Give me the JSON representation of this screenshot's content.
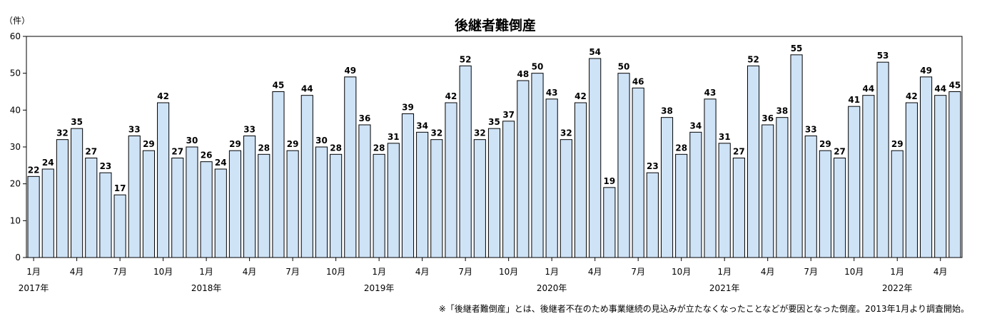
{
  "chart_data": {
    "type": "bar",
    "title": "後継者難倒産",
    "ylabel": "（件）",
    "ylim": [
      0,
      60
    ],
    "yticks": [
      0,
      10,
      20,
      30,
      40,
      50,
      60
    ],
    "grid": false,
    "legend": "none",
    "bar_color": "#cfe3f7",
    "bar_outline": "#000000",
    "categories": [
      "2017-01",
      "2017-02",
      "2017-03",
      "2017-04",
      "2017-05",
      "2017-06",
      "2017-07",
      "2017-08",
      "2017-09",
      "2017-10",
      "2017-11",
      "2017-12",
      "2018-01",
      "2018-02",
      "2018-03",
      "2018-04",
      "2018-05",
      "2018-06",
      "2018-07",
      "2018-08",
      "2018-09",
      "2018-10",
      "2018-11",
      "2018-12",
      "2019-01",
      "2019-02",
      "2019-03",
      "2019-04",
      "2019-05",
      "2019-06",
      "2019-07",
      "2019-08",
      "2019-09",
      "2019-10",
      "2019-11",
      "2019-12",
      "2020-01",
      "2020-02",
      "2020-03",
      "2020-04",
      "2020-05",
      "2020-06",
      "2020-07",
      "2020-08",
      "2020-09",
      "2020-10",
      "2020-11",
      "2020-12",
      "2021-01",
      "2021-02",
      "2021-03",
      "2021-04",
      "2021-05",
      "2021-06",
      "2021-07",
      "2021-08",
      "2021-09",
      "2021-10",
      "2021-11",
      "2021-12",
      "2022-01",
      "2022-02",
      "2022-03",
      "2022-04",
      "2022-05"
    ],
    "values": [
      22,
      24,
      32,
      35,
      27,
      23,
      17,
      33,
      29,
      42,
      27,
      30,
      26,
      24,
      29,
      33,
      28,
      45,
      29,
      44,
      30,
      28,
      49,
      36,
      28,
      31,
      39,
      34,
      32,
      42,
      52,
      32,
      35,
      37,
      48,
      50,
      43,
      32,
      42,
      54,
      19,
      50,
      46,
      23,
      38,
      28,
      34,
      43,
      31,
      27,
      52,
      36,
      38,
      55,
      33,
      29,
      27,
      41,
      44,
      53,
      29,
      42,
      49,
      44,
      45
    ],
    "x_tick_labels": [
      {
        "index": 0,
        "month": "1月",
        "year": "2017年"
      },
      {
        "index": 3,
        "month": "4月"
      },
      {
        "index": 6,
        "month": "7月"
      },
      {
        "index": 9,
        "month": "10月"
      },
      {
        "index": 12,
        "month": "1月",
        "year": "2018年"
      },
      {
        "index": 15,
        "month": "4月"
      },
      {
        "index": 18,
        "month": "7月"
      },
      {
        "index": 21,
        "month": "10月"
      },
      {
        "index": 24,
        "month": "1月",
        "year": "2019年"
      },
      {
        "index": 27,
        "month": "4月"
      },
      {
        "index": 30,
        "month": "7月"
      },
      {
        "index": 33,
        "month": "10月"
      },
      {
        "index": 36,
        "month": "1月",
        "year": "2020年"
      },
      {
        "index": 39,
        "month": "4月"
      },
      {
        "index": 42,
        "month": "7月"
      },
      {
        "index": 45,
        "month": "10月"
      },
      {
        "index": 48,
        "month": "1月",
        "year": "2021年"
      },
      {
        "index": 51,
        "month": "4月"
      },
      {
        "index": 54,
        "month": "7月"
      },
      {
        "index": 57,
        "month": "10月"
      },
      {
        "index": 60,
        "month": "1月",
        "year": "2022年"
      },
      {
        "index": 63,
        "month": "4月"
      }
    ],
    "footnote": "※「後継者難倒産」とは、後継者不在のため事業継続の見込みが立たなくなったことなどが要因となった倒産。2013年1月より調査開始。"
  }
}
